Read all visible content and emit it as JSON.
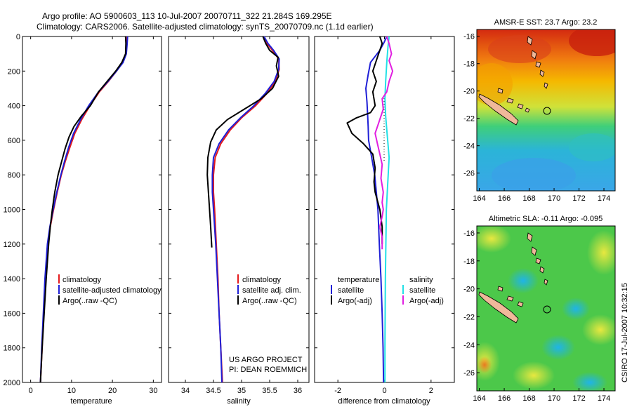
{
  "header": {
    "line1": "Argo profile: AO 5900603_113 10-Jul-2007 20070711_322 21.284S 169.295E",
    "line2": "Climatology: CARS2006. Satellite-adjusted climatology: synTS_20070709.nc (1.1d earlier)"
  },
  "colors": {
    "climatology": "#e41a1c",
    "satellite": "#1f1fd6",
    "argo": "#000000",
    "salinity_satellite": "#22e0e6",
    "salinity_argo": "#e11fe1",
    "land": "#f0b89a"
  },
  "chart_data": [
    {
      "type": "line",
      "panel": "temperature",
      "xlabel": "temperature",
      "xlim": [
        -2,
        32
      ],
      "ylim": [
        2000,
        0
      ],
      "xticks": [
        "0",
        "10",
        "20",
        "30"
      ],
      "yticks": [
        "0",
        "200",
        "400",
        "600",
        "800",
        "1000",
        "1200",
        "1400",
        "1600",
        "1800",
        "2000"
      ],
      "legend": [
        "climatology",
        "satellite-adjusted climatology",
        "Argo(..raw -QC)"
      ],
      "series": [
        {
          "name": "climatology",
          "color": "#e41a1c",
          "points": [
            [
              23.6,
              0
            ],
            [
              23.5,
              40
            ],
            [
              23.3,
              100
            ],
            [
              22.5,
              150
            ],
            [
              21,
              200
            ],
            [
              19,
              260
            ],
            [
              16.8,
              320
            ],
            [
              14.5,
              400
            ],
            [
              12.5,
              480
            ],
            [
              10.8,
              560
            ],
            [
              9.6,
              640
            ],
            [
              8.5,
              720
            ],
            [
              7.5,
              800
            ],
            [
              6.5,
              900
            ],
            [
              5.6,
              1000
            ],
            [
              4.8,
              1100
            ],
            [
              4.2,
              1200
            ],
            [
              3.6,
              1400
            ],
            [
              3.2,
              1600
            ],
            [
              2.8,
              1800
            ],
            [
              2.4,
              2000
            ]
          ]
        },
        {
          "name": "satellite-adjusted climatology",
          "color": "#1f1fd6",
          "points": [
            [
              23.7,
              0
            ],
            [
              23.6,
              40
            ],
            [
              23.4,
              100
            ],
            [
              22.6,
              150
            ],
            [
              21,
              200
            ],
            [
              18.9,
              260
            ],
            [
              16.6,
              320
            ],
            [
              14.2,
              400
            ],
            [
              12.2,
              480
            ],
            [
              10.5,
              560
            ],
            [
              9.3,
              640
            ],
            [
              8.3,
              720
            ],
            [
              7.4,
              800
            ],
            [
              6.4,
              900
            ],
            [
              5.5,
              1000
            ],
            [
              4.7,
              1100
            ],
            [
              4.1,
              1200
            ],
            [
              3.5,
              1400
            ],
            [
              3.1,
              1600
            ],
            [
              2.7,
              1800
            ],
            [
              2.4,
              2000
            ]
          ]
        },
        {
          "name": "Argo(..raw -QC)",
          "color": "#000000",
          "points": [
            [
              23.2,
              0
            ],
            [
              23.3,
              40
            ],
            [
              23.2,
              100
            ],
            [
              22.3,
              150
            ],
            [
              20.8,
              200
            ],
            [
              18.7,
              260
            ],
            [
              16.6,
              320
            ],
            [
              14.6,
              400
            ],
            [
              12.4,
              460
            ],
            [
              10.6,
              520
            ],
            [
              9.4,
              580
            ],
            [
              8.4,
              650
            ],
            [
              7.5,
              730
            ],
            [
              6.7,
              800
            ],
            [
              5.9,
              900
            ],
            [
              5.3,
              1000
            ],
            [
              4.8,
              1100
            ],
            [
              4.4,
              1200
            ],
            [
              3.8,
              1400
            ],
            [
              3.3,
              1600
            ],
            [
              2.8,
              1800
            ],
            [
              2.4,
              2000
            ]
          ]
        }
      ]
    },
    {
      "type": "line",
      "panel": "salinity",
      "xlabel": "salinity",
      "xlim": [
        33.7,
        36.2
      ],
      "ylim": [
        2000,
        0
      ],
      "xticks": [
        "34",
        "34.5",
        "35",
        "35.5",
        "36"
      ],
      "legend": [
        "climatology",
        "satellite adj. clim.",
        "Argo(..raw -QC)"
      ],
      "series": [
        {
          "name": "climatology",
          "color": "#e41a1c",
          "points": [
            [
              35.4,
              0
            ],
            [
              35.45,
              40
            ],
            [
              35.55,
              80
            ],
            [
              35.66,
              130
            ],
            [
              35.67,
              190
            ],
            [
              35.6,
              260
            ],
            [
              35.45,
              330
            ],
            [
              35.25,
              400
            ],
            [
              35.0,
              470
            ],
            [
              34.8,
              540
            ],
            [
              34.63,
              620
            ],
            [
              34.53,
              700
            ],
            [
              34.5,
              800
            ],
            [
              34.5,
              900
            ],
            [
              34.52,
              1000
            ],
            [
              34.55,
              1200
            ],
            [
              34.58,
              1400
            ],
            [
              34.6,
              1600
            ],
            [
              34.63,
              1800
            ],
            [
              34.66,
              2000
            ]
          ]
        },
        {
          "name": "satellite adj. clim.",
          "color": "#1f1fd6",
          "points": [
            [
              35.4,
              0
            ],
            [
              35.47,
              40
            ],
            [
              35.57,
              80
            ],
            [
              35.67,
              130
            ],
            [
              35.66,
              190
            ],
            [
              35.58,
              260
            ],
            [
              35.42,
              330
            ],
            [
              35.22,
              400
            ],
            [
              34.98,
              470
            ],
            [
              34.77,
              540
            ],
            [
              34.6,
              620
            ],
            [
              34.5,
              700
            ],
            [
              34.48,
              800
            ],
            [
              34.48,
              900
            ],
            [
              34.5,
              1000
            ],
            [
              34.54,
              1200
            ],
            [
              34.57,
              1400
            ],
            [
              34.6,
              1600
            ],
            [
              34.63,
              1800
            ],
            [
              34.65,
              2000
            ]
          ]
        },
        {
          "name": "Argo(..raw -QC)",
          "color": "#000000",
          "points": [
            [
              35.38,
              0
            ],
            [
              35.43,
              40
            ],
            [
              35.5,
              80
            ],
            [
              35.65,
              120
            ],
            [
              35.62,
              170
            ],
            [
              35.66,
              230
            ],
            [
              35.55,
              300
            ],
            [
              35.35,
              360
            ],
            [
              35.05,
              420
            ],
            [
              34.75,
              480
            ],
            [
              34.55,
              540
            ],
            [
              34.45,
              610
            ],
            [
              34.4,
              700
            ],
            [
              34.39,
              800
            ],
            [
              34.41,
              900
            ],
            [
              34.43,
              1000
            ],
            [
              34.45,
              1100
            ],
            [
              34.47,
              1220
            ]
          ]
        }
      ]
    },
    {
      "type": "line",
      "panel": "difference",
      "xlabel": "difference from climatology",
      "xlim": [
        -3,
        3
      ],
      "ylim": [
        2000,
        0
      ],
      "xticks": [
        "-2",
        "0",
        "2"
      ],
      "legend": [
        {
          "group": "temperature",
          "entries": [
            "satellite",
            "Argo(-adj)"
          ]
        },
        {
          "group": "salinity",
          "entries": [
            "satellite",
            "Argo(-adj)"
          ]
        }
      ],
      "series": [
        {
          "name": "temperature satellite",
          "color": "#1f1fd6",
          "points": [
            [
              0.1,
              0
            ],
            [
              0.0,
              30
            ],
            [
              -0.2,
              80
            ],
            [
              -0.6,
              150
            ],
            [
              -0.7,
              220
            ],
            [
              -0.8,
              300
            ],
            [
              -0.75,
              380
            ],
            [
              -0.72,
              460
            ],
            [
              -0.7,
              520
            ],
            [
              -0.68,
              600
            ],
            [
              -0.55,
              700
            ],
            [
              -0.42,
              800
            ],
            [
              -0.35,
              900
            ],
            [
              -0.28,
              1000
            ],
            [
              -0.22,
              1200
            ],
            [
              -0.15,
              1400
            ],
            [
              -0.1,
              1600
            ],
            [
              -0.06,
              1800
            ],
            [
              -0.04,
              2000
            ]
          ]
        },
        {
          "name": "temperature Argo(-adj)",
          "color": "#000000",
          "points": [
            [
              -0.2,
              0
            ],
            [
              -0.1,
              40
            ],
            [
              -0.3,
              120
            ],
            [
              -0.5,
              200
            ],
            [
              -0.35,
              260
            ],
            [
              -0.5,
              320
            ],
            [
              -0.4,
              400
            ],
            [
              -0.6,
              440
            ],
            [
              -1.2,
              470
            ],
            [
              -1.6,
              500
            ],
            [
              -1.4,
              560
            ],
            [
              -0.9,
              620
            ],
            [
              -0.5,
              680
            ],
            [
              -0.4,
              760
            ],
            [
              -0.45,
              840
            ],
            [
              -0.4,
              900
            ],
            [
              -0.2,
              1000
            ],
            [
              -0.1,
              1100
            ],
            [
              -0.1,
              1200
            ]
          ]
        },
        {
          "name": "salinity satellite",
          "color": "#22e0e6",
          "points": [
            [
              0.2,
              0
            ],
            [
              0.15,
              60
            ],
            [
              0.1,
              150
            ],
            [
              0.05,
              260
            ],
            [
              0.02,
              360
            ],
            [
              0.05,
              460
            ],
            [
              0.1,
              540
            ],
            [
              0.15,
              620
            ],
            [
              0.2,
              700
            ],
            [
              0.16,
              800
            ],
            [
              0.12,
              900
            ],
            [
              0.08,
              1000
            ],
            [
              0.06,
              1200
            ],
            [
              0.04,
              1400
            ],
            [
              0.03,
              1600
            ],
            [
              0.02,
              1800
            ],
            [
              0.02,
              2000
            ]
          ]
        },
        {
          "name": "salinity Argo(-adj)",
          "color": "#e11fe1",
          "points": [
            [
              0.1,
              0
            ],
            [
              0.2,
              40
            ],
            [
              0.3,
              100
            ],
            [
              0.2,
              140
            ],
            [
              0.35,
              200
            ],
            [
              0.2,
              260
            ],
            [
              0.1,
              320
            ],
            [
              -0.1,
              360
            ],
            [
              -0.05,
              420
            ],
            [
              -0.25,
              500
            ],
            [
              -0.4,
              560
            ],
            [
              -0.3,
              620
            ],
            [
              -0.2,
              680
            ],
            [
              -0.1,
              740
            ],
            [
              -0.15,
              820
            ],
            [
              -0.05,
              900
            ],
            [
              -0.1,
              960
            ],
            [
              -0.05,
              1000
            ],
            [
              -0.1,
              1040
            ],
            [
              -0.2,
              1100
            ],
            [
              -0.1,
              1160
            ],
            [
              -0.1,
              1230
            ]
          ]
        }
      ]
    },
    {
      "type": "heatmap",
      "panel": "sst-map",
      "title": "AMSR-E SST: 23.7  Argo: 23.2",
      "xticks": [
        "164",
        "166",
        "168",
        "170",
        "172",
        "174"
      ],
      "yticks": [
        "-16",
        "-18",
        "-20",
        "-22",
        "-24",
        "-26"
      ],
      "xlim": [
        163.8,
        174.9
      ],
      "ylim": [
        -27.3,
        -15.5
      ],
      "argo_position": [
        169.295,
        -21.284
      ]
    },
    {
      "type": "heatmap",
      "panel": "sla-map",
      "title": "Altimetric SLA: -0.11  Argo: -0.095",
      "xticks": [
        "164",
        "166",
        "168",
        "170",
        "172",
        "174"
      ],
      "yticks": [
        "-16",
        "-18",
        "-20",
        "-22",
        "-24",
        "-26"
      ],
      "xlim": [
        163.8,
        174.9
      ],
      "ylim": [
        -27.3,
        -15.5
      ],
      "argo_position": [
        169.295,
        -21.284
      ]
    }
  ],
  "annotations": {
    "project_line1": "US ARGO PROJECT",
    "project_line2": "PI: DEAN ROEMMICH",
    "stamp": "CSIRO 17-Jul-2007 10:32:15"
  }
}
